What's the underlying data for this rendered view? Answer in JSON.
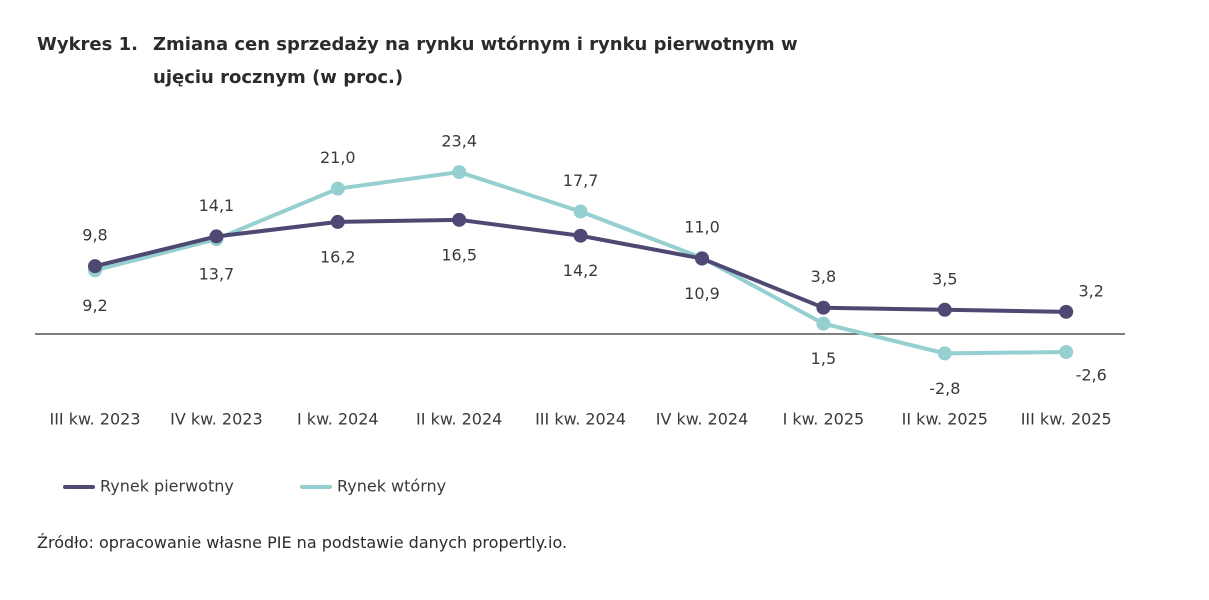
{
  "chart_data": {
    "type": "line",
    "title_label": "Wykres 1.",
    "title": "Zmiana cen sprzedaży na rynku wtórnym i rynku pierwotnym w ujęciu rocznym (w proc.)",
    "source": "Źródło: opracowanie własne PIE na podstawie danych propertly.io.",
    "categories": [
      "III kw. 2023",
      "IV kw. 2023",
      "I kw. 2024",
      "II kw. 2024",
      "III kw. 2024",
      "IV kw. 2024",
      "I kw. 2025",
      "II kw. 2025",
      "III kw. 2025"
    ],
    "series": [
      {
        "name": "Rynek pierwotny",
        "color": "#4e4872",
        "values": [
          9.8,
          14.1,
          16.2,
          16.5,
          14.2,
          10.9,
          3.8,
          3.5,
          3.2
        ],
        "value_labels": [
          "9,8",
          "14,1",
          "16,2",
          "16,5",
          "14,2",
          "10,9",
          "3,8",
          "3,5",
          "3,2"
        ]
      },
      {
        "name": "Rynek wtórny",
        "color": "#95cfcf",
        "values": [
          9.2,
          13.7,
          21.0,
          23.4,
          17.7,
          11.0,
          1.5,
          -2.8,
          -2.6
        ],
        "value_labels": [
          "9,2",
          "13,7",
          "21,0",
          "23,4",
          "17,7",
          "11,0",
          "1,5",
          "-2,8",
          "-2,6"
        ]
      }
    ],
    "ylim": [
      -5,
      28
    ],
    "legend": "bottom-left"
  }
}
